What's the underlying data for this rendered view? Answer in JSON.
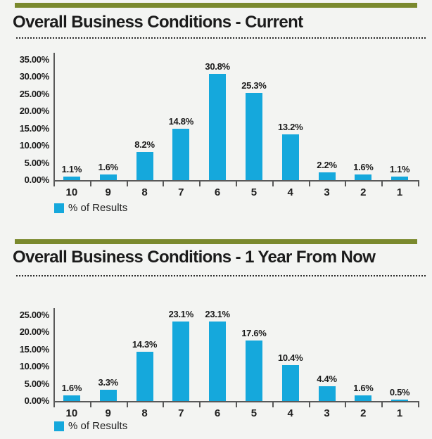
{
  "theme": {
    "background": "#f3f4f2",
    "accent_bar_color": "#7a892d",
    "bar_color": "#15a8dc",
    "axis_color": "#595959",
    "rule_color": "#2b2b2b",
    "text_color": "#1b1b1b"
  },
  "chart_data": [
    {
      "type": "bar",
      "title": "Overall Business Conditions - Current",
      "categories": [
        "10",
        "9",
        "8",
        "7",
        "6",
        "5",
        "4",
        "3",
        "2",
        "1"
      ],
      "values": [
        1.1,
        1.6,
        8.2,
        14.8,
        30.8,
        25.3,
        13.2,
        2.2,
        1.6,
        1.1
      ],
      "data_labels": [
        "1.1%",
        "1.6%",
        "8.2%",
        "14.8%",
        "30.8%",
        "25.3%",
        "13.2%",
        "2.2%",
        "1.6%",
        "1.1%"
      ],
      "xlabel": "",
      "ylabel": "",
      "ylim": [
        0,
        35
      ],
      "ytick_step": 5,
      "ytick_labels": [
        "0.00%",
        "5.00%",
        "10.00%",
        "15.00%",
        "20.00%",
        "25.00%",
        "30.00%",
        "35.00%"
      ],
      "grid": false,
      "legend": [
        "% of Results"
      ],
      "legend_position": "bottom-left"
    },
    {
      "type": "bar",
      "title": "Overall Business Conditions - 1 Year From Now",
      "categories": [
        "10",
        "9",
        "8",
        "7",
        "6",
        "5",
        "4",
        "3",
        "2",
        "1"
      ],
      "values": [
        1.6,
        3.3,
        14.3,
        23.1,
        23.1,
        17.6,
        10.4,
        4.4,
        1.6,
        0.5
      ],
      "data_labels": [
        "1.6%",
        "3.3%",
        "14.3%",
        "23.1%",
        "23.1%",
        "17.6%",
        "10.4%",
        "4.4%",
        "1.6%",
        "0.5%"
      ],
      "xlabel": "",
      "ylabel": "",
      "ylim": [
        0,
        25
      ],
      "ytick_step": 5,
      "ytick_labels": [
        "0.00%",
        "5.00%",
        "10.00%",
        "15.00%",
        "20.00%",
        "25.00%"
      ],
      "grid": false,
      "legend": [
        "% of Results"
      ],
      "legend_position": "bottom-left"
    }
  ]
}
